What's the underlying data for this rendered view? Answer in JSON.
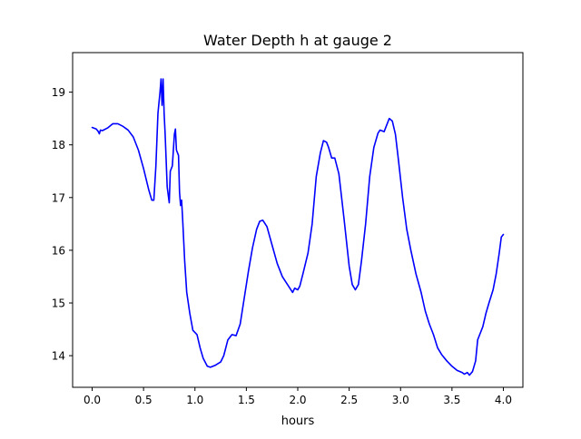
{
  "chart_data": {
    "type": "line",
    "title": "Water Depth h at gauge 2",
    "xlabel": "hours",
    "ylabel": "",
    "xlim": [
      -0.19,
      4.19
    ],
    "ylim": [
      13.4,
      19.75
    ],
    "xticks": [
      0.0,
      0.5,
      1.0,
      1.5,
      2.0,
      2.5,
      3.0,
      3.5,
      4.0
    ],
    "xtick_labels": [
      "0.0",
      "0.5",
      "1.0",
      "1.5",
      "2.0",
      "2.5",
      "3.0",
      "3.5",
      "4.0"
    ],
    "yticks": [
      14,
      15,
      16,
      17,
      18,
      19
    ],
    "ytick_labels": [
      "14",
      "15",
      "16",
      "17",
      "18",
      "19"
    ],
    "grid": false,
    "series": [
      {
        "color": "#0000ff",
        "points": [
          [
            0.0,
            18.33
          ],
          [
            0.04,
            18.3
          ],
          [
            0.06,
            18.25
          ],
          [
            0.07,
            18.21
          ],
          [
            0.08,
            18.28
          ],
          [
            0.1,
            18.27
          ],
          [
            0.15,
            18.32
          ],
          [
            0.2,
            18.4
          ],
          [
            0.25,
            18.4
          ],
          [
            0.3,
            18.35
          ],
          [
            0.35,
            18.28
          ],
          [
            0.4,
            18.15
          ],
          [
            0.45,
            17.9
          ],
          [
            0.5,
            17.55
          ],
          [
            0.55,
            17.15
          ],
          [
            0.58,
            16.95
          ],
          [
            0.6,
            16.95
          ],
          [
            0.62,
            17.6
          ],
          [
            0.64,
            18.6
          ],
          [
            0.66,
            19.0
          ],
          [
            0.67,
            19.25
          ],
          [
            0.68,
            18.75
          ],
          [
            0.69,
            19.25
          ],
          [
            0.7,
            18.6
          ],
          [
            0.71,
            18.2
          ],
          [
            0.73,
            17.2
          ],
          [
            0.75,
            16.9
          ],
          [
            0.76,
            17.5
          ],
          [
            0.78,
            17.6
          ],
          [
            0.8,
            18.2
          ],
          [
            0.81,
            18.3
          ],
          [
            0.82,
            17.9
          ],
          [
            0.84,
            17.8
          ],
          [
            0.85,
            17.1
          ],
          [
            0.86,
            16.85
          ],
          [
            0.87,
            16.95
          ],
          [
            0.88,
            16.6
          ],
          [
            0.9,
            15.8
          ],
          [
            0.92,
            15.2
          ],
          [
            0.95,
            14.8
          ],
          [
            0.98,
            14.48
          ],
          [
            1.02,
            14.4
          ],
          [
            1.05,
            14.15
          ],
          [
            1.08,
            13.95
          ],
          [
            1.12,
            13.8
          ],
          [
            1.15,
            13.78
          ],
          [
            1.2,
            13.82
          ],
          [
            1.25,
            13.88
          ],
          [
            1.28,
            14.0
          ],
          [
            1.32,
            14.3
          ],
          [
            1.36,
            14.4
          ],
          [
            1.4,
            14.38
          ],
          [
            1.44,
            14.6
          ],
          [
            1.48,
            15.1
          ],
          [
            1.52,
            15.6
          ],
          [
            1.56,
            16.05
          ],
          [
            1.6,
            16.4
          ],
          [
            1.63,
            16.55
          ],
          [
            1.66,
            16.57
          ],
          [
            1.7,
            16.45
          ],
          [
            1.75,
            16.1
          ],
          [
            1.8,
            15.75
          ],
          [
            1.85,
            15.5
          ],
          [
            1.9,
            15.35
          ],
          [
            1.95,
            15.2
          ],
          [
            1.97,
            15.28
          ],
          [
            2.0,
            15.25
          ],
          [
            2.02,
            15.32
          ],
          [
            2.05,
            15.55
          ],
          [
            2.1,
            15.95
          ],
          [
            2.14,
            16.5
          ],
          [
            2.18,
            17.4
          ],
          [
            2.22,
            17.85
          ],
          [
            2.25,
            18.08
          ],
          [
            2.28,
            18.05
          ],
          [
            2.3,
            17.95
          ],
          [
            2.33,
            17.75
          ],
          [
            2.36,
            17.75
          ],
          [
            2.4,
            17.45
          ],
          [
            2.45,
            16.6
          ],
          [
            2.5,
            15.7
          ],
          [
            2.53,
            15.35
          ],
          [
            2.56,
            15.25
          ],
          [
            2.59,
            15.35
          ],
          [
            2.62,
            15.8
          ],
          [
            2.66,
            16.5
          ],
          [
            2.7,
            17.4
          ],
          [
            2.74,
            17.95
          ],
          [
            2.78,
            18.22
          ],
          [
            2.8,
            18.28
          ],
          [
            2.84,
            18.25
          ],
          [
            2.87,
            18.4
          ],
          [
            2.89,
            18.5
          ],
          [
            2.92,
            18.45
          ],
          [
            2.95,
            18.2
          ],
          [
            2.98,
            17.7
          ],
          [
            3.02,
            17.0
          ],
          [
            3.06,
            16.4
          ],
          [
            3.1,
            16.0
          ],
          [
            3.15,
            15.55
          ],
          [
            3.2,
            15.2
          ],
          [
            3.24,
            14.85
          ],
          [
            3.28,
            14.6
          ],
          [
            3.32,
            14.4
          ],
          [
            3.36,
            14.15
          ],
          [
            3.4,
            14.02
          ],
          [
            3.45,
            13.9
          ],
          [
            3.5,
            13.8
          ],
          [
            3.55,
            13.72
          ],
          [
            3.6,
            13.68
          ],
          [
            3.62,
            13.65
          ],
          [
            3.65,
            13.68
          ],
          [
            3.67,
            13.63
          ],
          [
            3.7,
            13.7
          ],
          [
            3.73,
            13.9
          ],
          [
            3.75,
            14.3
          ],
          [
            3.77,
            14.4
          ],
          [
            3.8,
            14.55
          ],
          [
            3.83,
            14.8
          ],
          [
            3.86,
            15.0
          ],
          [
            3.9,
            15.25
          ],
          [
            3.93,
            15.55
          ],
          [
            3.96,
            15.95
          ],
          [
            3.98,
            16.25
          ],
          [
            4.0,
            16.3
          ]
        ]
      }
    ]
  }
}
